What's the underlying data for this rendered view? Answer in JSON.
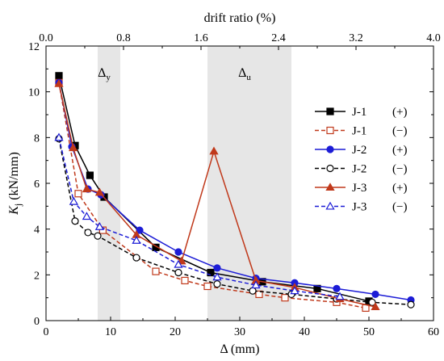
{
  "chart_data": {
    "type": "line",
    "title": "",
    "xlabel": "Δ (mm)",
    "ylabel": "Kj (kN/mm)",
    "ylabel_main": "K",
    "ylabel_sub": "j",
    "ylabel_unit": " (kN/mm)",
    "top_xlabel": "drift ratio (%)",
    "xlim": [
      0,
      60
    ],
    "ylim": [
      0,
      12
    ],
    "top_xlim": [
      0,
      4.0
    ],
    "xticks": [
      0,
      10,
      20,
      30,
      40,
      50,
      60
    ],
    "yticks": [
      0,
      2,
      4,
      6,
      8,
      10,
      12
    ],
    "top_xticks": [
      "0.0",
      "0.8",
      "1.6",
      "2.4",
      "3.2",
      "4.0"
    ],
    "top_xtick_values": [
      0.0,
      0.8,
      1.6,
      2.4,
      3.2,
      4.0
    ],
    "grid": false,
    "legend_position": "right",
    "shaded_bands": [
      {
        "label": "Δy",
        "label_main": "Δ",
        "label_sub": "y",
        "x_range": [
          8,
          11.5
        ]
      },
      {
        "label": "Δu",
        "label_main": "Δ",
        "label_sub": "u",
        "x_range": [
          25,
          38
        ]
      }
    ],
    "series": [
      {
        "name": "J-1 (+)",
        "id": "J-1",
        "sign": "(+)",
        "color": "#000000",
        "dash": "solid",
        "marker": "square",
        "filled": true,
        "x": [
          2.0,
          4.5,
          6.8,
          9.0,
          17.0,
          25.5,
          33.5,
          42.0,
          50.0
        ],
        "y": [
          10.7,
          7.65,
          6.35,
          5.4,
          3.2,
          2.1,
          1.7,
          1.4,
          0.85
        ]
      },
      {
        "name": "J-1 (−)",
        "id": "J-1",
        "sign": "(−)",
        "color": "#c0391b",
        "dash": "dashed",
        "marker": "square",
        "filled": false,
        "x": [
          2.0,
          5.0,
          8.8,
          17.0,
          21.5,
          25.0,
          33.0,
          37.0,
          45.0,
          49.5
        ],
        "y": [
          10.4,
          5.55,
          3.95,
          2.15,
          1.75,
          1.5,
          1.15,
          1.0,
          0.8,
          0.55
        ]
      },
      {
        "name": "J-2 (+)",
        "id": "J-2",
        "sign": "(+)",
        "color": "#1c1cd6",
        "dash": "solid",
        "marker": "circle",
        "filled": true,
        "x": [
          2.0,
          4.0,
          6.5,
          8.5,
          14.5,
          20.5,
          26.5,
          32.5,
          38.5,
          45.0,
          51.0,
          56.5
        ],
        "y": [
          10.4,
          7.6,
          5.75,
          5.5,
          3.95,
          3.0,
          2.3,
          1.85,
          1.65,
          1.4,
          1.15,
          0.9
        ]
      },
      {
        "name": "J-2 (−)",
        "id": "J-2",
        "sign": "(−)",
        "color": "#000000",
        "dash": "dashed",
        "marker": "circle",
        "filled": false,
        "x": [
          2.0,
          4.5,
          6.5,
          8.0,
          14.0,
          20.5,
          26.5,
          32.0,
          38.0,
          45.0,
          50.5,
          56.5
        ],
        "y": [
          7.95,
          4.35,
          3.85,
          3.7,
          2.75,
          2.1,
          1.6,
          1.3,
          1.15,
          0.95,
          0.8,
          0.7
        ]
      },
      {
        "name": "J-3 (+)",
        "id": "J-3",
        "sign": "(+)",
        "color": "#c0391b",
        "dash": "solid",
        "marker": "triangle",
        "filled": true,
        "x": [
          2.0,
          4.2,
          6.3,
          8.3,
          14.0,
          21.0,
          26.0,
          32.5,
          38.5,
          45.5,
          51.0
        ],
        "y": [
          10.35,
          7.55,
          5.75,
          5.6,
          3.75,
          2.6,
          7.4,
          1.75,
          1.45,
          0.95,
          0.6
        ]
      },
      {
        "name": "J-3 (−)",
        "id": "J-3",
        "sign": "(−)",
        "color": "#1c1cd6",
        "dash": "dashed",
        "marker": "triangle",
        "filled": false,
        "x": [
          2.0,
          4.3,
          6.3,
          8.3,
          14.0,
          20.5,
          26.5,
          32.5,
          38.5,
          45.5
        ],
        "y": [
          8.0,
          5.2,
          4.55,
          4.1,
          3.5,
          2.45,
          1.9,
          1.55,
          1.3,
          1.05
        ]
      }
    ]
  }
}
